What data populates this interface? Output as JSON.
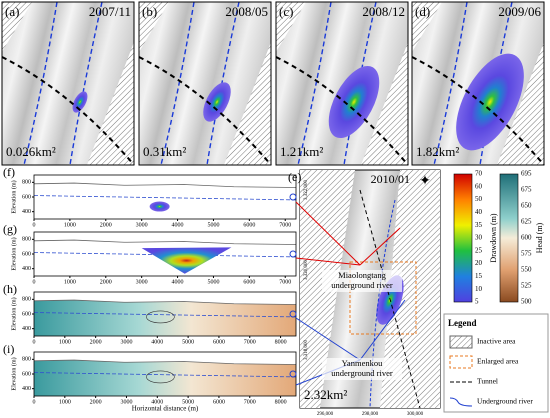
{
  "panels": [
    {
      "label": "(a)",
      "date": "2007/11",
      "area": "0.026km²"
    },
    {
      "label": "(b)",
      "date": "2008/05",
      "area": "0.31km²"
    },
    {
      "label": "(c)",
      "date": "2008/12",
      "area": "1.21km²"
    },
    {
      "label": "(d)",
      "date": "2009/06",
      "area": "1.82km²"
    }
  ],
  "sections": [
    {
      "label": "(f)",
      "ylabel": "Elevation (m)",
      "xlim": [
        0,
        7300
      ],
      "ylim": [
        300,
        900
      ],
      "xticks": [
        0,
        1000,
        2000,
        3000,
        4000,
        5000,
        6000,
        7000
      ],
      "yticks": [
        400,
        600,
        800
      ]
    },
    {
      "label": "(g)",
      "ylabel": "Elevation (m)",
      "xlim": [
        0,
        7300
      ],
      "ylim": [
        300,
        900
      ],
      "xticks": [
        0,
        1000,
        2000,
        3000,
        4000,
        5000,
        6000,
        7000
      ],
      "yticks": [
        400,
        600,
        800
      ]
    },
    {
      "label": "(h)",
      "ylabel": "Elevation (m)",
      "xlim": [
        0,
        8500
      ],
      "ylim": [
        300,
        900
      ],
      "xticks": [
        0,
        1000,
        2000,
        3000,
        4000,
        5000,
        6000,
        7000,
        8000
      ],
      "yticks": [
        400,
        600,
        800
      ]
    },
    {
      "label": "(i)",
      "ylabel": "Elevation (m)",
      "xlim": [
        0,
        8500
      ],
      "ylim": [
        300,
        900
      ],
      "xticks": [
        0,
        1000,
        2000,
        3000,
        4000,
        5000,
        6000,
        7000,
        8000
      ],
      "yticks": [
        400,
        600,
        800
      ],
      "xlabel": "Horizontal distance (m)"
    }
  ],
  "map": {
    "label": "(e)",
    "date": "2010/01",
    "area": "2.32km²",
    "xticks": [
      "296,000",
      "298,000",
      "300,000"
    ],
    "yticks": [
      "3,322,000",
      "3,320,000",
      "3,318,000"
    ]
  },
  "annotations": [
    "Miaolongtang underground river",
    "Yanmenkou underground river"
  ],
  "drawdown": {
    "label": "Drawdown (m)",
    "ticks": [
      70,
      60,
      50,
      40,
      35,
      30,
      25,
      20,
      15,
      10,
      5
    ]
  },
  "head": {
    "label": "Head (m)",
    "ticks": [
      695,
      675,
      650,
      625,
      600,
      575,
      550,
      525,
      500
    ]
  },
  "legend": {
    "title": "Legend",
    "items": [
      "Inactive area",
      "Enlarged area",
      "Tunnel",
      "Underground river"
    ]
  }
}
